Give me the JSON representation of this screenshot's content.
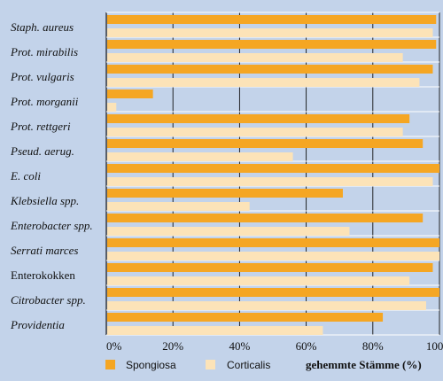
{
  "chart_data": {
    "type": "bar",
    "orientation": "horizontal",
    "categories": [
      "Staph. aureus",
      "Prot. mirabilis",
      "Prot. vulgaris",
      "Prot. morganii",
      "Prot. rettgeri",
      "Pseud. aerug.",
      "E. coli",
      "Klebsiella spp.",
      "Enterobacter spp.",
      "Serrati marces",
      "Enterokokken",
      "Citrobacter spp.",
      "Providentia"
    ],
    "italic_categories": [
      true,
      true,
      true,
      true,
      true,
      true,
      true,
      true,
      true,
      true,
      false,
      true,
      true
    ],
    "series": [
      {
        "name": "Spongiosa",
        "color": "#f5a623",
        "values": [
          99,
          99,
          98,
          14,
          91,
          95,
          100,
          71,
          95,
          100,
          98,
          100,
          83
        ]
      },
      {
        "name": "Corticalis",
        "color": "#fce3b8",
        "values": [
          98,
          89,
          94,
          3,
          89,
          56,
          98,
          43,
          73,
          100,
          91,
          96,
          65
        ]
      }
    ],
    "xlabel": "gehemmte Stämme (%)",
    "xlim": [
      0,
      100
    ],
    "xticks": [
      "0%",
      "20%",
      "40%",
      "60%",
      "80%",
      "100%"
    ],
    "grid": "vertical",
    "background_color": "#c3d3ea",
    "legend_position": "bottom"
  }
}
